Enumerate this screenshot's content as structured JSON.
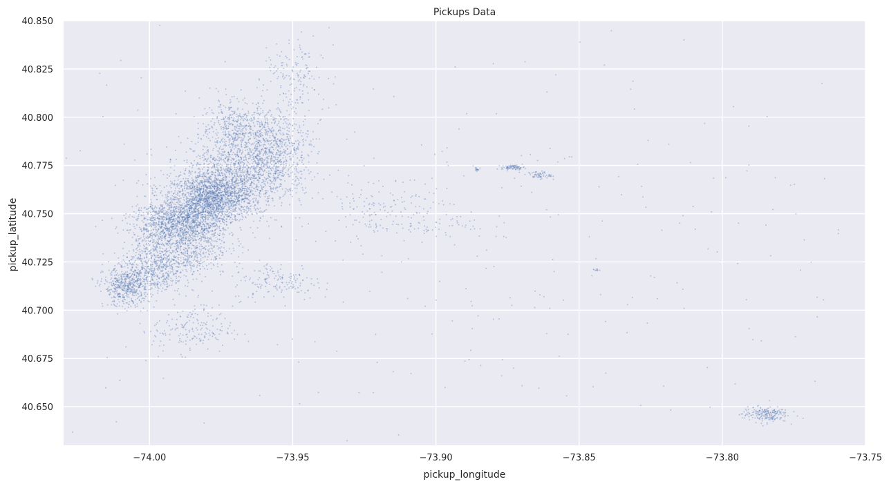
{
  "chart_data": {
    "type": "scatter",
    "title": "Pickups Data",
    "xlabel": "pickup_longitude",
    "ylabel": "pickup_latitude",
    "xlim": [
      -74.03,
      -73.75
    ],
    "ylim": [
      40.63,
      40.85
    ],
    "x_ticks": [
      -74.0,
      -73.95,
      -73.9,
      -73.85,
      -73.8,
      -73.75
    ],
    "x_tick_labels": [
      "−74.00",
      "−73.95",
      "−73.90",
      "−73.85",
      "−73.80",
      "−73.75"
    ],
    "y_ticks": [
      40.65,
      40.675,
      40.7,
      40.725,
      40.75,
      40.775,
      40.8,
      40.825,
      40.85
    ],
    "y_tick_labels": [
      "40.650",
      "40.675",
      "40.700",
      "40.725",
      "40.750",
      "40.775",
      "40.800",
      "40.825",
      "40.850"
    ],
    "grid": true,
    "background_color": "#eaeaf2",
    "point_color": "#4c72b0",
    "series": [
      {
        "clusters": [
          {
            "x": -73.978,
            "y": 40.758,
            "sx": 0.007,
            "sy": 0.006,
            "n": 1200
          },
          {
            "x": -73.975,
            "y": 40.765,
            "sx": 0.01,
            "sy": 0.01,
            "n": 900
          },
          {
            "x": -73.988,
            "y": 40.735,
            "sx": 0.008,
            "sy": 0.009,
            "n": 800
          },
          {
            "x": -73.965,
            "y": 40.775,
            "sx": 0.008,
            "sy": 0.01,
            "n": 700
          },
          {
            "x": -73.955,
            "y": 40.785,
            "sx": 0.006,
            "sy": 0.01,
            "n": 500
          },
          {
            "x": -73.97,
            "y": 40.795,
            "sx": 0.006,
            "sy": 0.007,
            "n": 400
          },
          {
            "x": -74.008,
            "y": 40.712,
            "sx": 0.004,
            "sy": 0.005,
            "n": 500
          },
          {
            "x": -73.998,
            "y": 40.722,
            "sx": 0.006,
            "sy": 0.006,
            "n": 500
          },
          {
            "x": -73.995,
            "y": 40.745,
            "sx": 0.006,
            "sy": 0.007,
            "n": 500
          },
          {
            "x": -73.985,
            "y": 40.748,
            "sx": 0.006,
            "sy": 0.005,
            "n": 600
          },
          {
            "x": -73.95,
            "y": 40.82,
            "sx": 0.005,
            "sy": 0.01,
            "n": 150
          },
          {
            "x": -73.985,
            "y": 40.69,
            "sx": 0.007,
            "sy": 0.006,
            "n": 180
          },
          {
            "x": -73.955,
            "y": 40.715,
            "sx": 0.008,
            "sy": 0.005,
            "n": 150
          },
          {
            "x": -73.92,
            "y": 40.755,
            "sx": 0.01,
            "sy": 0.008,
            "n": 120
          },
          {
            "x": -73.873,
            "y": 40.774,
            "sx": 0.002,
            "sy": 0.0006,
            "n": 80
          },
          {
            "x": -73.864,
            "y": 40.77,
            "sx": 0.002,
            "sy": 0.001,
            "n": 60
          },
          {
            "x": -73.886,
            "y": 40.773,
            "sx": 0.0005,
            "sy": 0.0005,
            "n": 15
          },
          {
            "x": -73.785,
            "y": 40.646,
            "sx": 0.004,
            "sy": 0.002,
            "n": 200
          },
          {
            "x": -73.844,
            "y": 40.721,
            "sx": 0.0005,
            "sy": 0.0004,
            "n": 10
          },
          {
            "x": -73.905,
            "y": 40.745,
            "sx": 0.012,
            "sy": 0.004,
            "n": 80
          },
          {
            "x": -73.9,
            "y": 40.74,
            "sx": 0.08,
            "sy": 0.06,
            "n": 350
          }
        ]
      }
    ]
  }
}
